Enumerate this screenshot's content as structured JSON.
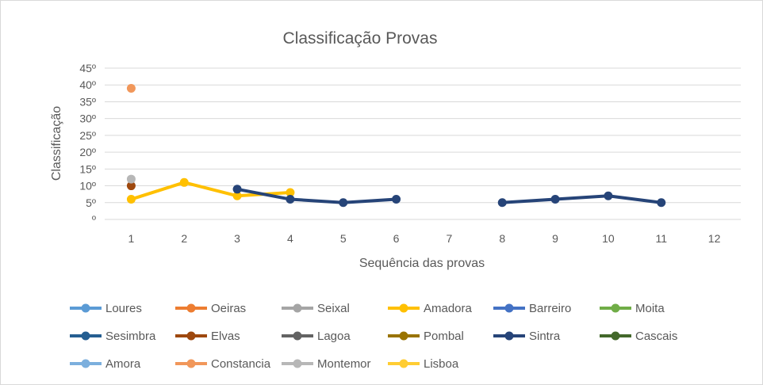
{
  "chart_data": {
    "type": "line",
    "title": "Classificação Provas",
    "xlabel": "Sequência das provas",
    "ylabel": "Classificação",
    "categories": [
      "1",
      "2",
      "3",
      "4",
      "5",
      "6",
      "7",
      "8",
      "9",
      "10",
      "11",
      "12"
    ],
    "y_ticks": [
      "º",
      "5º",
      "10º",
      "15º",
      "20º",
      "25º",
      "30º",
      "35º",
      "40º",
      "45º"
    ],
    "ylim": [
      0,
      45
    ],
    "grid": true,
    "legend_position": "bottom",
    "series": [
      {
        "name": "Loures",
        "color": "#5b9bd5",
        "values": [
          null,
          null,
          null,
          null,
          null,
          null,
          null,
          null,
          null,
          null,
          null,
          null
        ]
      },
      {
        "name": "Oeiras",
        "color": "#ed7d31",
        "values": [
          null,
          null,
          null,
          null,
          null,
          null,
          null,
          null,
          null,
          null,
          null,
          null
        ]
      },
      {
        "name": "Seixal",
        "color": "#a5a5a5",
        "values": [
          null,
          null,
          null,
          null,
          null,
          null,
          null,
          null,
          null,
          null,
          null,
          null
        ]
      },
      {
        "name": "Amadora",
        "color": "#ffc000",
        "values": [
          6,
          11,
          7,
          8,
          null,
          null,
          null,
          null,
          null,
          null,
          null,
          null
        ]
      },
      {
        "name": "Barreiro",
        "color": "#4472c4",
        "values": [
          null,
          null,
          null,
          null,
          null,
          null,
          null,
          null,
          null,
          null,
          null,
          null
        ]
      },
      {
        "name": "Moita",
        "color": "#70ad47",
        "values": [
          null,
          null,
          null,
          null,
          null,
          null,
          null,
          null,
          null,
          null,
          null,
          null
        ]
      },
      {
        "name": "Sesimbra",
        "color": "#255e91",
        "values": [
          null,
          null,
          null,
          null,
          null,
          null,
          null,
          null,
          null,
          null,
          null,
          null
        ]
      },
      {
        "name": "Elvas",
        "color": "#9e480e",
        "values": [
          10,
          null,
          null,
          null,
          null,
          null,
          null,
          null,
          null,
          null,
          null,
          null
        ]
      },
      {
        "name": "Lagoa",
        "color": "#636363",
        "values": [
          null,
          null,
          null,
          null,
          null,
          null,
          null,
          null,
          null,
          null,
          null,
          null
        ]
      },
      {
        "name": "Pombal",
        "color": "#997300",
        "values": [
          null,
          null,
          null,
          null,
          null,
          null,
          null,
          null,
          null,
          null,
          null,
          null
        ]
      },
      {
        "name": "Sintra",
        "color": "#264478",
        "values": [
          null,
          null,
          9,
          6,
          5,
          6,
          null,
          5,
          6,
          7,
          5,
          null
        ]
      },
      {
        "name": "Cascais",
        "color": "#43682b",
        "values": [
          null,
          null,
          null,
          null,
          null,
          null,
          null,
          null,
          null,
          null,
          null,
          null
        ]
      },
      {
        "name": "Amora",
        "color": "#7cafdd",
        "values": [
          null,
          null,
          null,
          null,
          null,
          null,
          null,
          null,
          null,
          null,
          null,
          null
        ]
      },
      {
        "name": "Constancia",
        "color": "#f1975a",
        "values": [
          39,
          null,
          null,
          null,
          null,
          null,
          null,
          null,
          null,
          null,
          null,
          null
        ]
      },
      {
        "name": "Montemor",
        "color": "#b7b7b7",
        "values": [
          12,
          null,
          null,
          null,
          null,
          null,
          null,
          null,
          null,
          null,
          null,
          null
        ]
      },
      {
        "name": "Lisboa",
        "color": "#ffcd33",
        "values": [
          null,
          null,
          null,
          null,
          null,
          null,
          null,
          null,
          null,
          null,
          null,
          null
        ]
      }
    ]
  }
}
